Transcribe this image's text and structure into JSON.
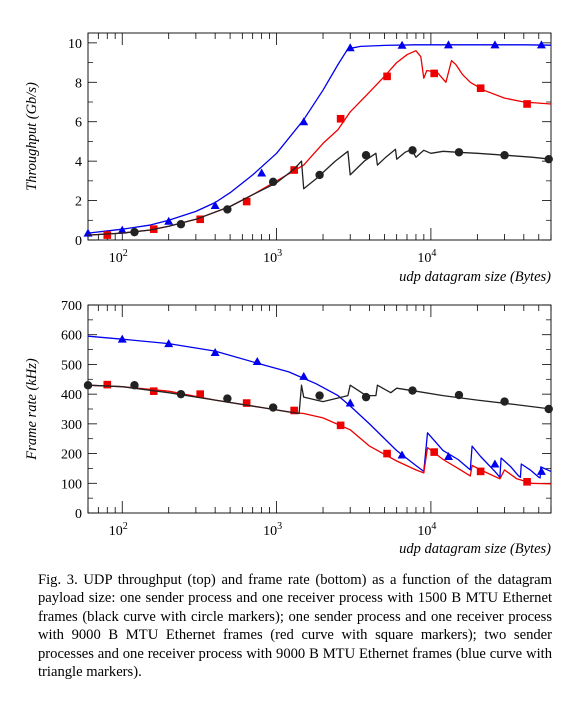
{
  "chart_data": [
    {
      "type": "line",
      "x_scale": "log",
      "xlim": [
        60,
        60000
      ],
      "ylim": [
        0,
        10.5
      ],
      "xlabel": "udp datagram size (Bytes)",
      "ylabel": "Throughput (Gb/s)",
      "x_ticks": [
        {
          "v": 100,
          "b": "10",
          "e": "2"
        },
        {
          "v": 1000,
          "b": "10",
          "e": "3"
        },
        {
          "v": 10000,
          "b": "10",
          "e": "4"
        }
      ],
      "y_ticks": [
        0,
        2,
        4,
        6,
        8,
        10
      ],
      "series": [
        {
          "color": "#0000ee",
          "marker": "triangle",
          "x": [
            60,
            100,
            150,
            200,
            300,
            400,
            500,
            700,
            1000,
            1500,
            2000,
            2500,
            2900,
            3500,
            5000,
            8000,
            12000,
            20000,
            40000,
            60000
          ],
          "y": [
            0.35,
            0.55,
            0.75,
            1.0,
            1.45,
            1.9,
            2.4,
            3.3,
            4.4,
            6.1,
            7.6,
            8.9,
            9.7,
            9.82,
            9.87,
            9.9,
            9.9,
            9.9,
            9.9,
            9.88
          ],
          "marker_x": [
            60,
            100,
            200,
            400,
            800,
            1500,
            3000,
            6500,
            13000,
            26000,
            52000
          ],
          "marker_y": [
            0.35,
            0.5,
            0.95,
            1.75,
            3.4,
            6.0,
            9.75,
            9.88,
            9.9,
            9.9,
            9.9
          ]
        },
        {
          "color": "#ee0000",
          "marker": "square",
          "x": [
            60,
            100,
            150,
            200,
            300,
            500,
            700,
            1000,
            1500,
            2000,
            2500,
            3000,
            4000,
            5000,
            6000,
            7000,
            8000,
            8600,
            9000,
            9400,
            11000,
            12500,
            13600,
            14500,
            16000,
            18000,
            22000,
            30000,
            40000,
            60000
          ],
          "y": [
            0.25,
            0.35,
            0.5,
            0.7,
            1.05,
            1.7,
            2.3,
            3.0,
            3.8,
            4.9,
            5.6,
            6.5,
            7.5,
            8.3,
            9.0,
            9.4,
            9.6,
            9.3,
            8.2,
            8.6,
            8.5,
            8.0,
            9.1,
            8.9,
            8.4,
            8.0,
            7.6,
            7.2,
            7.0,
            6.9
          ],
          "marker_x": [
            80,
            160,
            320,
            640,
            1300,
            2600,
            5200,
            10500,
            21000,
            42000
          ],
          "marker_y": [
            0.25,
            0.55,
            1.05,
            1.95,
            3.55,
            6.15,
            8.3,
            8.45,
            7.7,
            6.9
          ]
        },
        {
          "color": "#222222",
          "marker": "circle",
          "x": [
            60,
            100,
            150,
            200,
            300,
            500,
            700,
            1000,
            1300,
            1450,
            1500,
            1800,
            2400,
            2900,
            3000,
            3700,
            4400,
            4500,
            5100,
            5900,
            6000,
            6800,
            7500,
            8000,
            9000,
            10000,
            12000,
            15000,
            20000,
            30000,
            45000,
            60000
          ],
          "y": [
            0.25,
            0.35,
            0.5,
            0.7,
            1.05,
            1.7,
            2.3,
            2.9,
            3.6,
            4.0,
            2.6,
            3.1,
            4.0,
            4.5,
            3.3,
            4.0,
            4.4,
            3.8,
            4.2,
            4.6,
            4.1,
            4.45,
            4.6,
            4.2,
            4.55,
            4.4,
            4.5,
            4.45,
            4.4,
            4.3,
            4.2,
            4.1
          ],
          "marker_x": [
            120,
            240,
            480,
            950,
            1900,
            3800,
            7600,
            15200,
            30000,
            58000
          ],
          "marker_y": [
            0.4,
            0.8,
            1.55,
            2.95,
            3.3,
            4.3,
            4.55,
            4.45,
            4.3,
            4.1
          ]
        }
      ]
    },
    {
      "type": "line",
      "x_scale": "log",
      "xlim": [
        60,
        60000
      ],
      "ylim": [
        0,
        700
      ],
      "xlabel": "udp datagram size (Bytes)",
      "ylabel": "Frame rate (kHz)",
      "x_ticks": [
        {
          "v": 100,
          "b": "10",
          "e": "2"
        },
        {
          "v": 1000,
          "b": "10",
          "e": "3"
        },
        {
          "v": 10000,
          "b": "10",
          "e": "4"
        }
      ],
      "y_ticks": [
        0,
        100,
        200,
        300,
        400,
        500,
        600,
        700
      ],
      "series": [
        {
          "color": "#0000ee",
          "marker": "triangle",
          "x": [
            60,
            100,
            200,
            400,
            800,
            1200,
            1800,
            2500,
            3000,
            4000,
            6000,
            8000,
            9000,
            9500,
            12000,
            15000,
            18000,
            18500,
            21000,
            26000,
            28000,
            28500,
            33000,
            37000,
            38000,
            38500,
            44000,
            50000,
            51000,
            51500,
            60000
          ],
          "y": [
            595,
            585,
            570,
            545,
            500,
            475,
            435,
            395,
            360,
            300,
            210,
            160,
            140,
            270,
            210,
            180,
            145,
            225,
            190,
            140,
            120,
            185,
            155,
            125,
            120,
            165,
            145,
            120,
            118,
            155,
            140
          ],
          "marker_x": [
            100,
            200,
            400,
            750,
            1500,
            3000,
            6500,
            13000,
            26000,
            52000
          ],
          "marker_y": [
            585,
            570,
            540,
            510,
            460,
            370,
            195,
            190,
            165,
            140
          ]
        },
        {
          "color": "#ee0000",
          "marker": "square",
          "x": [
            60,
            100,
            200,
            400,
            800,
            1200,
            1500,
            2000,
            3000,
            4000,
            6000,
            8000,
            9000,
            9500,
            12000,
            15000,
            18000,
            18500,
            22000,
            28000,
            30000,
            36000,
            45000,
            60000
          ],
          "y": [
            430,
            425,
            410,
            380,
            355,
            340,
            335,
            320,
            280,
            225,
            175,
            145,
            135,
            220,
            180,
            150,
            125,
            160,
            140,
            115,
            145,
            115,
            100,
            98
          ],
          "marker_x": [
            80,
            160,
            320,
            640,
            1300,
            2600,
            5200,
            10500,
            21000,
            42000
          ],
          "marker_y": [
            432,
            410,
            400,
            370,
            345,
            295,
            200,
            205,
            140,
            105
          ]
        },
        {
          "color": "#222222",
          "marker": "circle",
          "x": [
            60,
            100,
            200,
            400,
            800,
            1400,
            1450,
            1500,
            2000,
            2900,
            3000,
            3800,
            4400,
            4500,
            5500,
            6000,
            8000,
            12000,
            20000,
            35000,
            60000
          ],
          "y": [
            430,
            425,
            405,
            380,
            355,
            335,
            430,
            390,
            375,
            395,
            430,
            395,
            395,
            430,
            405,
            420,
            410,
            395,
            380,
            365,
            350
          ],
          "marker_x": [
            60,
            120,
            240,
            480,
            950,
            1900,
            3800,
            7600,
            15200,
            30000,
            58000
          ],
          "marker_y": [
            430,
            430,
            400,
            385,
            355,
            395,
            390,
            412,
            397,
            375,
            350
          ]
        }
      ]
    }
  ],
  "caption": "Fig. 3.  UDP throughput (top) and frame rate (bottom) as a function of the datagram payload size: one sender process and one receiver process with 1500 B MTU Ethernet frames (black curve with circle markers); one sender process and one receiver process with 9000 B MTU Ethernet frames (red curve with square markers); two sender processes and one receiver process with 9000 B MTU Ethernet frames (blue curve with triangle markers)."
}
